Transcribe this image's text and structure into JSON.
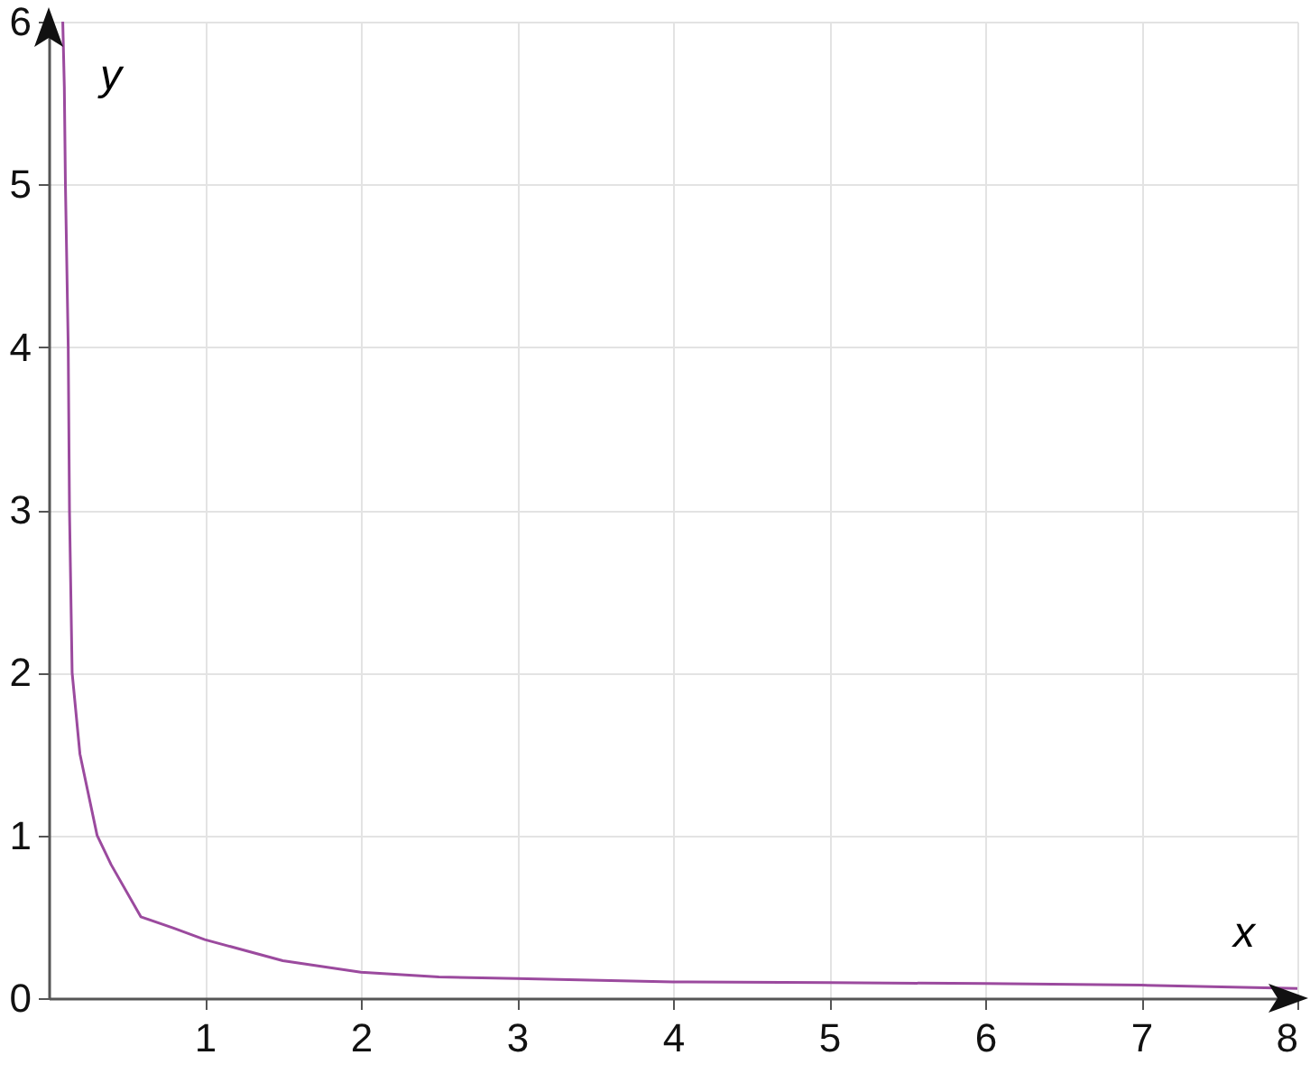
{
  "chart_data": {
    "type": "line",
    "xlabel": "x",
    "ylabel": "y",
    "x": [
      0.09,
      0.1,
      0.107,
      0.125,
      0.133,
      0.15,
      0.2,
      0.31,
      0.4,
      0.59,
      0.8,
      1,
      1.5,
      2,
      2.5,
      3,
      4,
      5,
      6,
      7,
      8
    ],
    "series": [
      {
        "color": "#9b4a9e",
        "values": [
          6,
          5.6,
          5,
          4,
          3,
          2,
          1.5,
          1,
          0.82,
          0.5,
          0.43,
          0.36,
          0.23,
          0.16,
          0.13,
          0.12,
          0.1,
          0.095,
          0.09,
          0.08,
          0.06
        ]
      }
    ],
    "xlim": [
      0,
      8
    ],
    "ylim": [
      0,
      6
    ],
    "xticks": [
      1,
      2,
      3,
      4,
      5,
      6,
      7,
      8
    ],
    "yticks": [
      0,
      1,
      2,
      3,
      4,
      5,
      6
    ],
    "grid": true,
    "marker": "none",
    "line_style": "solid"
  }
}
